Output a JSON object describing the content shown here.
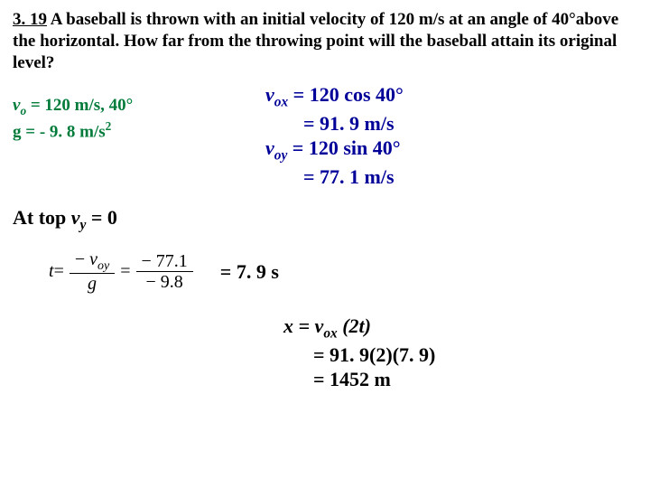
{
  "problem": {
    "number": "3. 19",
    "text_part1": " A baseball is thrown with an initial velocity of 120 m/s at an angle of 40°above the horizontal. How far from the throwing point will the baseball attain its original level?"
  },
  "given": {
    "color": "#007b3a",
    "line1_pre": "v",
    "line1_sub": "o",
    "line1_post": " = 120 m/s, 40°",
    "line2": "g = - 9. 8 m/s",
    "line2_sup": "2"
  },
  "vcomp": {
    "color": "#000099",
    "l1_pre": "v",
    "l1_sub": "ox",
    "l1_post": " = 120 cos 40°",
    "l2": "= 91. 9 m/s",
    "l3_pre": "v",
    "l3_sub": "oy",
    "l3_post": " = 120 sin 40°",
    "l4": "= 77. 1 m/s"
  },
  "attop": {
    "pre": "At top ",
    "v": "v",
    "sub": "y",
    "post": " = 0"
  },
  "eq": {
    "t": "t",
    "eq": " = ",
    "num1_a": "− ",
    "num1_v": "v",
    "num1_sub": "oy",
    "den1": "g",
    "num2": "− 77.1",
    "den2": "− 9.8",
    "rhs": "= 7. 9 s"
  },
  "final": {
    "l1_pre": "x = v",
    "l1_sub": "ox",
    "l1_post": " (2t)",
    "l2": "= 91. 9(2)(7. 9)",
    "l3": "= 1452 m"
  }
}
